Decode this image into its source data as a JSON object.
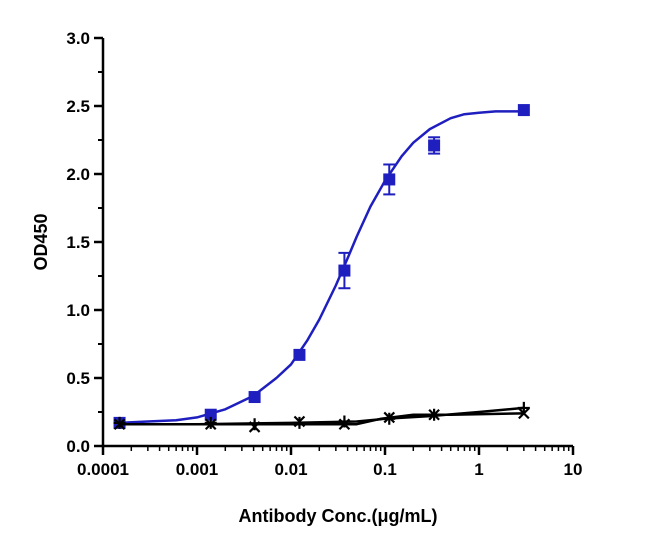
{
  "chart_data": {
    "type": "scatter",
    "title": "",
    "xlabel": "Antibody Conc.(μg/mL)",
    "ylabel": "OD450",
    "xscale": "log",
    "xlim": [
      0.0001,
      10
    ],
    "ylim": [
      0.0,
      3.0
    ],
    "x_ticks": [
      "0.0001",
      "0.001",
      "0.01",
      "0.1",
      "1",
      "10"
    ],
    "y_ticks": [
      "0.0",
      "0.5",
      "1.0",
      "1.5",
      "2.0",
      "2.5",
      "3.0"
    ],
    "grid": false,
    "legend": "none",
    "series": [
      {
        "marker": "square",
        "color": "#1f1fbf",
        "fit": "sigmoid",
        "x": [
          0.00015,
          0.0014,
          0.0041,
          0.0123,
          0.037,
          0.111,
          0.333,
          3.0
        ],
        "y": [
          0.17,
          0.23,
          0.36,
          0.67,
          1.29,
          1.96,
          2.21,
          2.47
        ],
        "error": [
          0.0,
          0.0,
          0.0,
          0.0,
          0.13,
          0.11,
          0.06,
          0.0
        ],
        "fit_curve": {
          "x": [
            0.00015,
            0.0003,
            0.0006,
            0.001,
            0.002,
            0.004,
            0.007,
            0.01,
            0.015,
            0.02,
            0.03,
            0.04,
            0.05,
            0.07,
            0.1,
            0.15,
            0.2,
            0.3,
            0.5,
            0.7,
            1.0,
            1.5,
            2.0,
            3.0
          ],
          "y": [
            0.17,
            0.18,
            0.19,
            0.21,
            0.27,
            0.37,
            0.5,
            0.6,
            0.78,
            0.93,
            1.18,
            1.38,
            1.54,
            1.76,
            1.95,
            2.13,
            2.23,
            2.33,
            2.41,
            2.44,
            2.45,
            2.46,
            2.46,
            2.46
          ]
        }
      },
      {
        "marker": "x",
        "color": "#000000",
        "fit": "line",
        "x": [
          0.00015,
          0.0014,
          0.0041,
          0.0123,
          0.037,
          0.111,
          0.333,
          3.0
        ],
        "y": [
          0.16,
          0.16,
          0.14,
          0.18,
          0.16,
          0.21,
          0.23,
          0.24
        ],
        "fit_curve": {
          "x": [
            0.00015,
            0.001,
            0.01,
            0.05,
            0.09,
            0.2,
            0.5,
            3.0
          ],
          "y": [
            0.16,
            0.16,
            0.16,
            0.16,
            0.2,
            0.23,
            0.23,
            0.24
          ]
        }
      },
      {
        "marker": "plus",
        "color": "#000000",
        "fit": "line",
        "x": [
          0.00015,
          0.0014,
          0.0041,
          0.0123,
          0.037,
          0.111,
          0.333,
          3.0
        ],
        "y": [
          0.17,
          0.17,
          0.16,
          0.17,
          0.18,
          0.2,
          0.23,
          0.28
        ],
        "fit_curve": {
          "x": [
            0.00015,
            0.001,
            0.01,
            0.05,
            0.1,
            0.3,
            1.0,
            3.0
          ],
          "y": [
            0.16,
            0.16,
            0.17,
            0.18,
            0.2,
            0.22,
            0.25,
            0.28
          ]
        }
      }
    ]
  }
}
